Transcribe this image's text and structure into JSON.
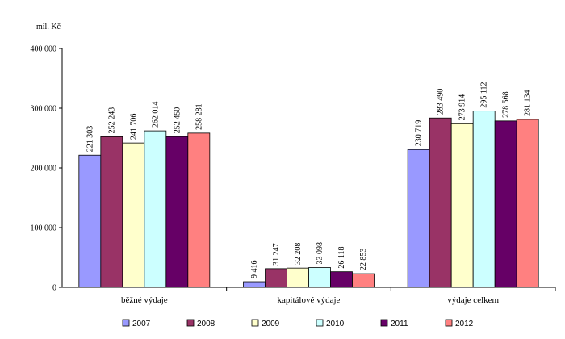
{
  "chart_data": {
    "type": "bar",
    "title": "",
    "ylabel": "mil. Kč",
    "xlabel": "",
    "ylim": [
      0,
      400000
    ],
    "yticks": [
      0,
      100000,
      200000,
      300000,
      400000
    ],
    "ytick_labels": [
      "0",
      "100 000",
      "200 000",
      "300 000",
      "400 000"
    ],
    "grid": false,
    "legend_position": "bottom",
    "categories": [
      "běžné výdaje",
      "kapitálové výdaje",
      "výdaje celkem"
    ],
    "series": [
      {
        "name": "2007",
        "color": "#9999ff",
        "values": [
          221303,
          9416,
          230719
        ],
        "labels": [
          "221 303",
          "9 416",
          "230 719"
        ]
      },
      {
        "name": "2008",
        "color": "#993366",
        "values": [
          252243,
          31247,
          283490
        ],
        "labels": [
          "252 243",
          "31 247",
          "283 490"
        ]
      },
      {
        "name": "2009",
        "color": "#ffffcc",
        "values": [
          241706,
          32208,
          273914
        ],
        "labels": [
          "241 706",
          "32 208",
          "273 914"
        ]
      },
      {
        "name": "2010",
        "color": "#ccffff",
        "values": [
          262014,
          33098,
          295112
        ],
        "labels": [
          "262 014",
          "33 098",
          "295 112"
        ]
      },
      {
        "name": "2011",
        "color": "#660066",
        "values": [
          252450,
          26118,
          278568
        ],
        "labels": [
          "252 450",
          "26 118",
          "278 568"
        ]
      },
      {
        "name": "2012",
        "color": "#ff8080",
        "values": [
          258281,
          22853,
          281134
        ],
        "labels": [
          "258 281",
          "22 853",
          "281 134"
        ]
      }
    ]
  }
}
